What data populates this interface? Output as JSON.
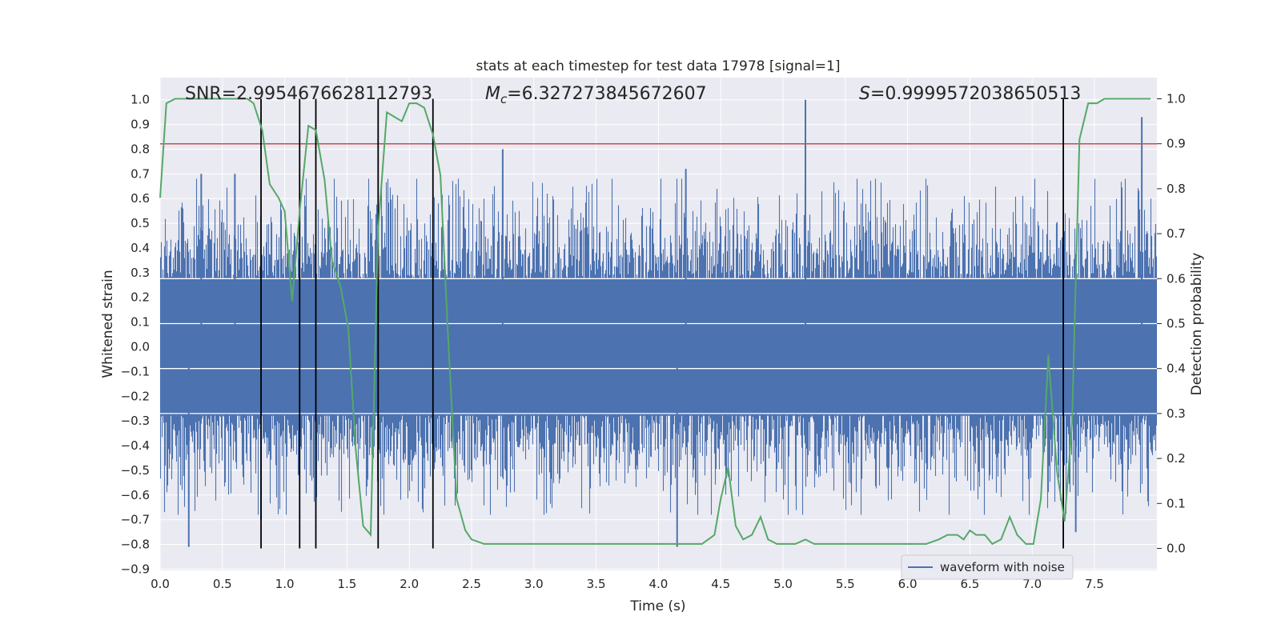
{
  "chart_data": {
    "type": "line",
    "title": "stats at each timestep for test data 17978 [signal=1]",
    "xlabel": "Time (s)",
    "ylabel": "Whitened strain",
    "y2label": "Detection probability",
    "xlim": [
      0.0,
      8.0
    ],
    "ylim": [
      -0.9,
      1.05
    ],
    "y2lim": [
      -0.04,
      1.04
    ],
    "xticks": [
      "0.0",
      "0.5",
      "1.0",
      "1.5",
      "2.0",
      "2.5",
      "3.0",
      "3.5",
      "4.0",
      "4.5",
      "5.0",
      "5.5",
      "6.0",
      "6.5",
      "7.0",
      "7.5"
    ],
    "yticks": [
      "1.0",
      "0.9",
      "0.8",
      "0.7",
      "0.6",
      "0.5",
      "0.4",
      "0.3",
      "0.2",
      "0.1",
      "0.0",
      "−0.1",
      "−0.2",
      "−0.3",
      "−0.4",
      "−0.5",
      "−0.6",
      "−0.7",
      "−0.8",
      "−0.9"
    ],
    "y2ticks": [
      "1.0",
      "0.9",
      "0.8",
      "0.7",
      "0.6",
      "0.5",
      "0.4",
      "0.3",
      "0.2",
      "0.1",
      "0.0"
    ],
    "grid": true,
    "legend_position": "lower-right",
    "annotations": {
      "snr": "SNR=2.9954676628112793",
      "mc_symbol": "M",
      "mc_sub": "c",
      "mc_value": "=6.327273845672607",
      "s_symbol": "S",
      "s_value": "=0.9999572038650513"
    },
    "threshold_y2": 0.9,
    "vertical_lines_x": [
      0.81,
      1.12,
      1.25,
      1.75,
      2.19,
      7.25
    ],
    "series": [
      {
        "name": "waveform with noise",
        "kind": "noise",
        "envelope": 0.45,
        "spike_ticks": [
          {
            "x": 0.23,
            "y": -0.81
          },
          {
            "x": 0.33,
            "y": 0.7
          },
          {
            "x": 0.6,
            "y": 0.7
          },
          {
            "x": 0.81,
            "y": -0.7
          },
          {
            "x": 2.75,
            "y": 0.8
          },
          {
            "x": 4.15,
            "y": -0.81
          },
          {
            "x": 4.22,
            "y": 0.72
          },
          {
            "x": 5.18,
            "y": 1.0
          },
          {
            "x": 7.35,
            "y": -0.75
          },
          {
            "x": 7.88,
            "y": 0.93
          }
        ]
      },
      {
        "name": "",
        "kind": "detection_probability",
        "x": [
          0.0,
          0.05,
          0.12,
          0.2,
          0.3,
          0.4,
          0.5,
          0.6,
          0.7,
          0.75,
          0.82,
          0.88,
          0.95,
          1.0,
          1.06,
          1.12,
          1.19,
          1.25,
          1.32,
          1.38,
          1.45,
          1.51,
          1.57,
          1.63,
          1.69,
          1.75,
          1.82,
          1.88,
          1.94,
          2.0,
          2.06,
          2.12,
          2.19,
          2.25,
          2.31,
          2.38,
          2.45,
          2.5,
          2.6,
          2.7,
          2.8,
          2.9,
          3.0,
          3.1,
          3.2,
          3.3,
          3.4,
          3.5,
          3.7,
          3.9,
          4.1,
          4.2,
          4.3,
          4.35,
          4.4,
          4.45,
          4.5,
          4.56,
          4.62,
          4.68,
          4.75,
          4.82,
          4.88,
          4.95,
          5.02,
          5.1,
          5.18,
          5.25,
          5.35,
          5.45,
          5.55,
          5.65,
          5.75,
          5.9,
          6.05,
          6.15,
          6.25,
          6.32,
          6.4,
          6.45,
          6.5,
          6.55,
          6.62,
          6.68,
          6.75,
          6.82,
          6.88,
          6.95,
          7.01,
          7.07,
          7.13,
          7.2,
          7.26,
          7.32,
          7.38,
          7.45,
          7.52,
          7.58,
          7.7,
          7.95
        ],
        "y": [
          0.78,
          0.99,
          1.0,
          1.0,
          1.0,
          1.0,
          1.0,
          1.0,
          1.0,
          0.99,
          0.93,
          0.81,
          0.78,
          0.75,
          0.55,
          0.75,
          0.94,
          0.93,
          0.82,
          0.64,
          0.58,
          0.49,
          0.22,
          0.05,
          0.03,
          0.71,
          0.97,
          0.96,
          0.95,
          0.99,
          0.99,
          0.98,
          0.92,
          0.83,
          0.48,
          0.11,
          0.04,
          0.02,
          0.01,
          0.01,
          0.01,
          0.01,
          0.01,
          0.01,
          0.01,
          0.01,
          0.01,
          0.01,
          0.01,
          0.01,
          0.01,
          0.01,
          0.01,
          0.01,
          0.02,
          0.03,
          0.11,
          0.18,
          0.05,
          0.02,
          0.03,
          0.07,
          0.02,
          0.01,
          0.01,
          0.01,
          0.02,
          0.01,
          0.01,
          0.01,
          0.01,
          0.01,
          0.01,
          0.01,
          0.01,
          0.01,
          0.02,
          0.03,
          0.03,
          0.02,
          0.04,
          0.03,
          0.03,
          0.01,
          0.02,
          0.07,
          0.03,
          0.01,
          0.01,
          0.11,
          0.43,
          0.17,
          0.06,
          0.28,
          0.91,
          0.99,
          0.99,
          1.0,
          1.0,
          1.0
        ]
      }
    ]
  },
  "colors": {
    "plot_bg": "#eaeaf2",
    "grid": "#ffffff",
    "noise": "#4c72b0",
    "detection": "#55a868",
    "threshold": "#c44e52",
    "vline": "#000000",
    "text": "#262626"
  }
}
